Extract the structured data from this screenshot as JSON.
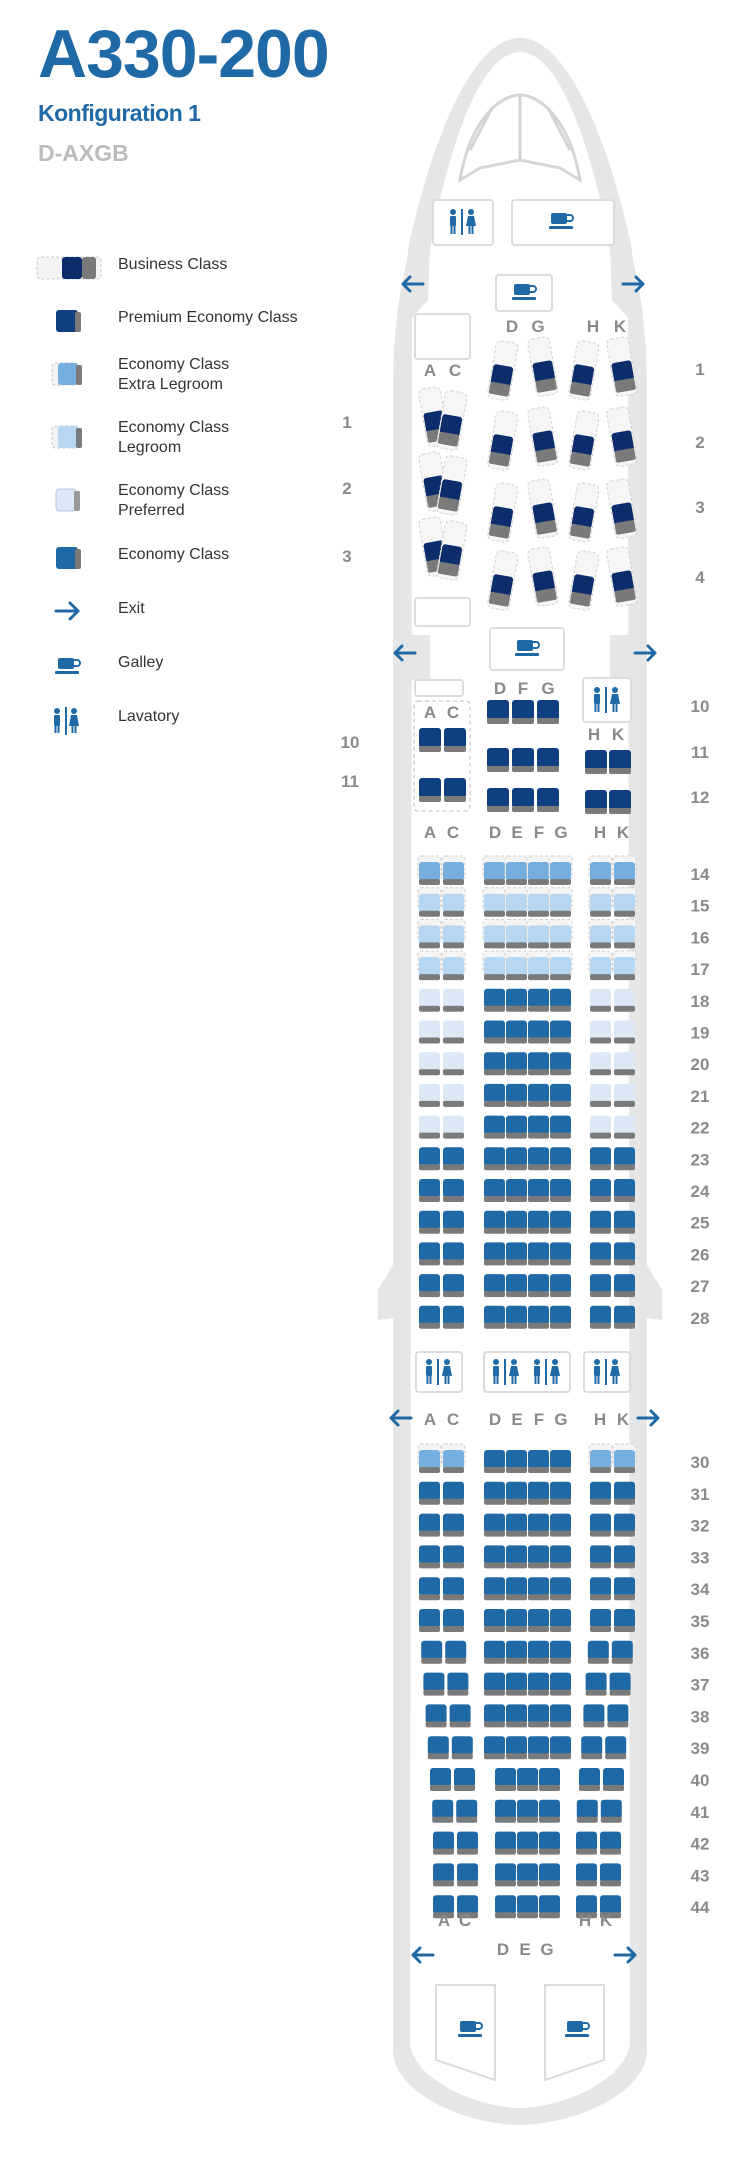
{
  "header": {
    "aircraft": "A330-200",
    "configuration": "Konfiguration 1",
    "registration": "D-AXGB"
  },
  "legend": [
    {
      "key": "business",
      "label": "Business Class"
    },
    {
      "key": "premium",
      "label": "Premium Economy Class"
    },
    {
      "key": "econ_extra",
      "label": "Economy Class\nExtra Legroom"
    },
    {
      "key": "econ_leg",
      "label": "Economy Class\nLegroom"
    },
    {
      "key": "econ_pref",
      "label": "Economy Class\nPreferred"
    },
    {
      "key": "economy",
      "label": "Economy Class"
    },
    {
      "key": "exit",
      "label": "Exit"
    },
    {
      "key": "galley",
      "label": "Galley"
    },
    {
      "key": "lavatory",
      "label": "Lavatory"
    }
  ],
  "colors": {
    "brand": "#1f69a6",
    "business": "#0c2d6b",
    "premium": "#0f3f80",
    "economy": "#1f69a6",
    "extra_legroom": "#77aee0",
    "legroom": "#b7d6f1",
    "preferred": "#dbe9f7",
    "fuselage": "#e6e6e6",
    "seat_base": "#7a7a7a"
  },
  "business": {
    "left_letters": [
      "A",
      "C"
    ],
    "center_letters": [
      "D",
      "G"
    ],
    "right_letters": [
      "H",
      "K"
    ],
    "right_row_labels": [
      "1",
      "2",
      "3",
      "4"
    ],
    "left_row_labels": [
      "1",
      "2",
      "3"
    ]
  },
  "premium": {
    "left_letters": [
      "A",
      "C"
    ],
    "center_letters": [
      "D",
      "F",
      "G"
    ],
    "right_letters": [
      "H",
      "K"
    ],
    "right_row_labels": [
      "10",
      "11",
      "12"
    ],
    "left_row_labels": [
      "10",
      "11"
    ]
  },
  "economy_front": {
    "left_letters": [
      "A",
      "C"
    ],
    "center_letters": [
      "D",
      "E",
      "F",
      "G"
    ],
    "right_letters": [
      "H",
      "K"
    ],
    "rows": [
      {
        "row": "14",
        "cls": "extra"
      },
      {
        "row": "15",
        "cls": "legroom"
      },
      {
        "row": "16",
        "cls": "legroom"
      },
      {
        "row": "17",
        "cls": "legroom"
      },
      {
        "row": "18",
        "cls": "pref_econ"
      },
      {
        "row": "19",
        "cls": "pref_econ"
      },
      {
        "row": "20",
        "cls": "pref_econ"
      },
      {
        "row": "21",
        "cls": "pref_econ"
      },
      {
        "row": "22",
        "cls": "pref_econ"
      },
      {
        "row": "23",
        "cls": "economy"
      },
      {
        "row": "24",
        "cls": "economy"
      },
      {
        "row": "25",
        "cls": "economy"
      },
      {
        "row": "26",
        "cls": "economy"
      },
      {
        "row": "27",
        "cls": "economy"
      },
      {
        "row": "28",
        "cls": "economy"
      }
    ]
  },
  "economy_rear": {
    "left_letters": [
      "A",
      "C"
    ],
    "center_letters": [
      "D",
      "E",
      "F",
      "G"
    ],
    "right_letters": [
      "H",
      "K"
    ],
    "rows": [
      "30",
      "31",
      "32",
      "33",
      "34",
      "35",
      "36",
      "37",
      "38",
      "39",
      "40",
      "41",
      "42",
      "43",
      "44"
    ],
    "tail_left_letters": [
      "A",
      "C"
    ],
    "tail_center_letters": [
      "D",
      "E",
      "G"
    ],
    "tail_right_letters": [
      "H",
      "K"
    ]
  }
}
